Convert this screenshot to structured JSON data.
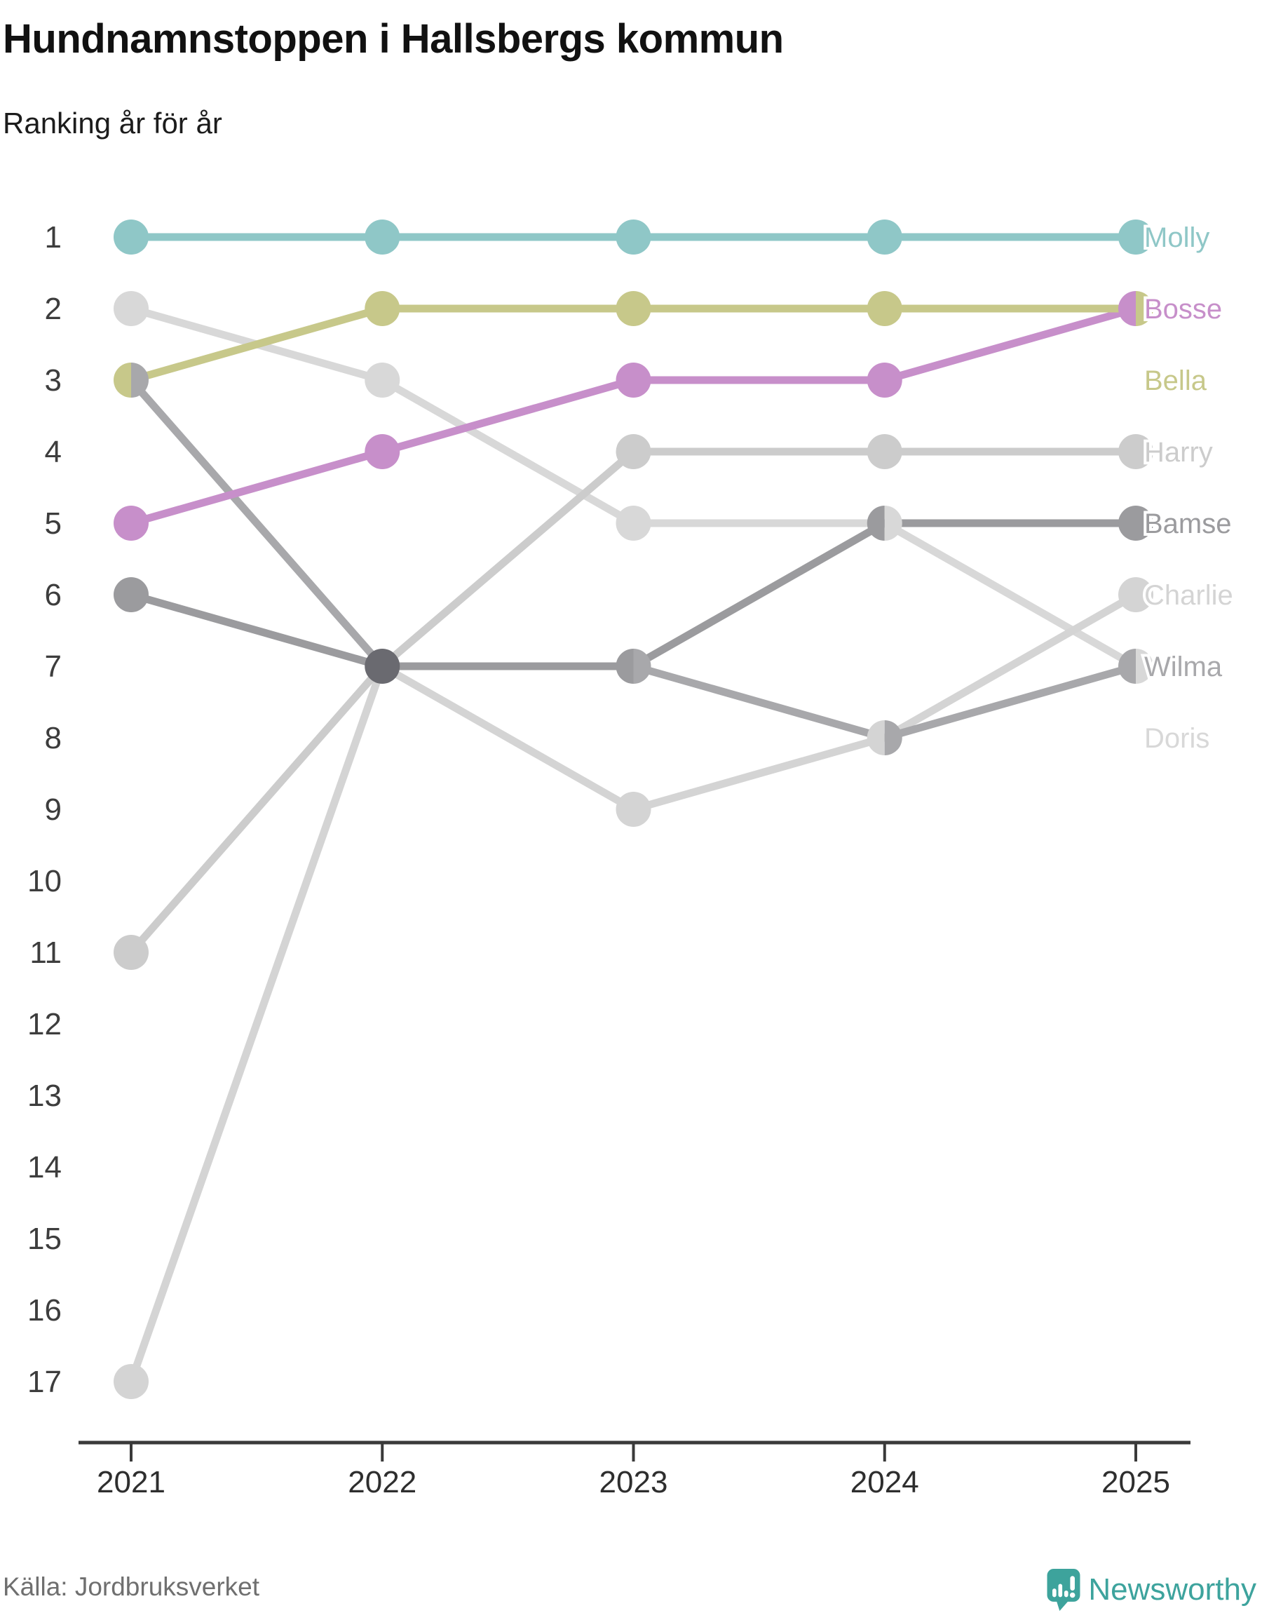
{
  "header": {
    "title": "Hundnamnstoppen i Hallsbergs kommun",
    "subtitle": "Ranking år för år"
  },
  "chart_data": {
    "type": "line",
    "variant": "bump-ranking",
    "title": "Hundnamnstoppen i Hallsbergs kommun",
    "subtitle": "Ranking år för år",
    "x": [
      2021,
      2022,
      2023,
      2024,
      2025
    ],
    "xlabel": "",
    "ylabel": "Ranking",
    "ylim": [
      1,
      17
    ],
    "y_inverted": true,
    "grid": false,
    "legend_position": "right-inline-labels",
    "rank_ticks": [
      1,
      2,
      3,
      4,
      5,
      6,
      7,
      8,
      9,
      10,
      11,
      12,
      13,
      14,
      15,
      16,
      17
    ],
    "multi_tie_color": "#6a6a70",
    "series": [
      {
        "name": "Molly",
        "color": "#8fc7c7",
        "ranks": [
          1,
          1,
          1,
          1,
          1
        ]
      },
      {
        "name": "Bosse",
        "color": "#c78fca",
        "ranks": [
          5,
          4,
          3,
          3,
          2
        ]
      },
      {
        "name": "Bella",
        "color": "#c7c88a",
        "ranks": [
          3,
          2,
          2,
          2,
          2
        ]
      },
      {
        "name": "Harry",
        "color": "#cccccc",
        "ranks": [
          11,
          7,
          4,
          4,
          4
        ]
      },
      {
        "name": "Bamse",
        "color": "#9b9b9e",
        "ranks": [
          6,
          7,
          7,
          5,
          5
        ]
      },
      {
        "name": "Charlie",
        "color": "#d4d4d4",
        "ranks": [
          17,
          7,
          9,
          8,
          6
        ]
      },
      {
        "name": "Wilma",
        "color": "#a8a8ab",
        "ranks": [
          3,
          7,
          7,
          8,
          7
        ]
      },
      {
        "name": "Doris",
        "color": "#d8d8d8",
        "ranks": [
          2,
          3,
          5,
          5,
          7
        ]
      }
    ]
  },
  "axis": {
    "axis_color": "#3a3a3a",
    "rank_label_color": "#3d3d3d",
    "year_label_color": "#2e2e2e"
  },
  "footer": {
    "source": "Källa: Jordbruksverket",
    "brand": "Newsworthy",
    "brand_color": "#3da39d",
    "logo_color": "#3da39c"
  }
}
